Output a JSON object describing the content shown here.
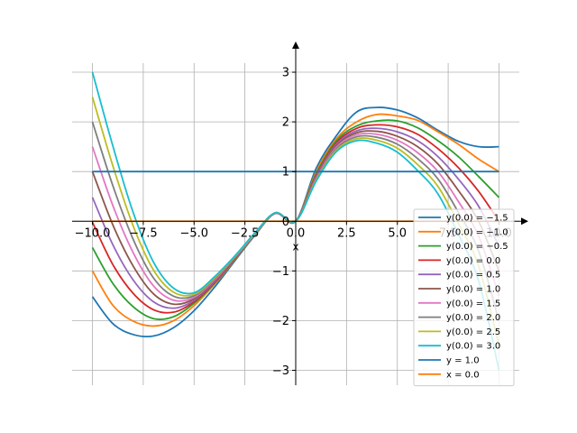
{
  "chart_data": {
    "type": "line",
    "xlabel": "x",
    "ylabel": "",
    "xlim": [
      -11,
      11
    ],
    "ylim": [
      -3.3,
      3.4
    ],
    "grid": true,
    "legend_position": "bottom-right",
    "x_ticks": [
      -10.0,
      -7.5,
      -5.0,
      -2.5,
      0.0,
      2.5,
      5.0,
      7.5,
      10.0
    ],
    "x_tick_labels": [
      "−10.0",
      "−7.5",
      "−5.0",
      "−2.5",
      "0.0",
      "2.5",
      "5.0",
      "7.5",
      "10.0"
    ],
    "y_ticks": [
      -3,
      -2,
      -1,
      0,
      1,
      2,
      3
    ],
    "y_tick_labels": [
      "−3",
      "−2",
      "−1",
      "0",
      "1",
      "2",
      "3"
    ],
    "x": [
      -10,
      -9,
      -8,
      -7,
      -6,
      -5,
      -4,
      -3,
      -2,
      -1,
      0,
      1,
      2,
      3,
      4,
      5,
      6,
      7,
      8,
      9,
      10
    ],
    "series": [
      {
        "name": "y(0.0) = −1.5",
        "color": "#1f77b4",
        "values": [
          -1.52,
          -2.06,
          -2.28,
          -2.31,
          -2.14,
          -1.8,
          -1.33,
          -0.8,
          -0.28,
          0.16,
          0.0,
          1.06,
          1.72,
          2.2,
          2.29,
          2.24,
          2.08,
          1.83,
          1.61,
          1.5,
          1.5
        ]
      },
      {
        "name": "y(0.0) = −1.0",
        "color": "#ff7f0e",
        "values": [
          -1.0,
          -1.69,
          -2.01,
          -2.11,
          -2.0,
          -1.7,
          -1.27,
          -0.78,
          -0.27,
          0.16,
          0.0,
          0.99,
          1.66,
          2.0,
          2.15,
          2.12,
          2.03,
          1.8,
          1.55,
          1.25,
          1.0
        ]
      },
      {
        "name": "y(0.0) = −0.5",
        "color": "#2ca02c",
        "values": [
          -0.53,
          -1.25,
          -1.72,
          -1.96,
          -1.92,
          -1.65,
          -1.25,
          -0.77,
          -0.27,
          0.16,
          0.0,
          0.95,
          1.62,
          1.92,
          2.02,
          2.02,
          1.88,
          1.62,
          1.3,
          0.9,
          0.48
        ]
      },
      {
        "name": "y(0.0) = 0.0",
        "color": "#d62728",
        "values": [
          -0.02,
          -0.87,
          -1.45,
          -1.78,
          -1.83,
          -1.62,
          -1.24,
          -0.76,
          -0.26,
          0.16,
          0.0,
          0.92,
          1.58,
          1.87,
          1.94,
          1.9,
          1.75,
          1.46,
          1.08,
          0.6,
          0.0
        ]
      },
      {
        "name": "y(0.0) = 0.5",
        "color": "#9467bd",
        "values": [
          0.48,
          -0.47,
          -1.18,
          -1.62,
          -1.75,
          -1.59,
          -1.22,
          -0.75,
          -0.26,
          0.16,
          0.0,
          0.9,
          1.55,
          1.82,
          1.87,
          1.8,
          1.62,
          1.3,
          0.85,
          0.3,
          -0.5
        ]
      },
      {
        "name": "y(0.0) = 1.0",
        "color": "#8c564b",
        "values": [
          1.0,
          -0.07,
          -0.9,
          -1.46,
          -1.67,
          -1.56,
          -1.2,
          -0.74,
          -0.25,
          0.17,
          0.0,
          0.88,
          1.52,
          1.78,
          1.81,
          1.71,
          1.5,
          1.15,
          0.62,
          0.0,
          -1.0
        ]
      },
      {
        "name": "y(0.0) = 1.5",
        "color": "#e377c2",
        "values": [
          1.5,
          0.32,
          -0.63,
          -1.3,
          -1.59,
          -1.53,
          -1.18,
          -0.73,
          -0.25,
          0.17,
          0.0,
          0.86,
          1.49,
          1.74,
          1.75,
          1.63,
          1.38,
          1.0,
          0.4,
          -0.3,
          -1.5
        ]
      },
      {
        "name": "y(0.0) = 2.0",
        "color": "#7f7f7f",
        "values": [
          2.0,
          0.72,
          -0.36,
          -1.14,
          -1.51,
          -1.5,
          -1.16,
          -0.72,
          -0.24,
          0.17,
          0.0,
          0.84,
          1.46,
          1.7,
          1.69,
          1.55,
          1.26,
          0.85,
          0.18,
          -0.6,
          -2.0
        ]
      },
      {
        "name": "y(0.0) = 2.5",
        "color": "#bcbd22",
        "values": [
          2.5,
          1.12,
          -0.09,
          -0.98,
          -1.43,
          -1.47,
          -1.14,
          -0.71,
          -0.24,
          0.17,
          0.0,
          0.82,
          1.43,
          1.66,
          1.63,
          1.47,
          1.14,
          0.7,
          -0.04,
          -0.9,
          -2.5
        ]
      },
      {
        "name": "y(0.0) = 3.0",
        "color": "#17becf",
        "values": [
          3.0,
          1.52,
          0.18,
          -0.82,
          -1.35,
          -1.44,
          -1.12,
          -0.7,
          -0.23,
          0.17,
          0.0,
          0.8,
          1.4,
          1.62,
          1.57,
          1.39,
          1.02,
          0.55,
          -0.26,
          -1.2,
          -3.0
        ]
      }
    ],
    "reference_lines": [
      {
        "name": "y = 1.0",
        "color": "#1f77b4",
        "orientation": "horizontal",
        "value": 1.0
      },
      {
        "name": "x = 0.0",
        "color": "#ff7f0e",
        "orientation": "horizontal-zero",
        "value": 0.0
      }
    ]
  }
}
